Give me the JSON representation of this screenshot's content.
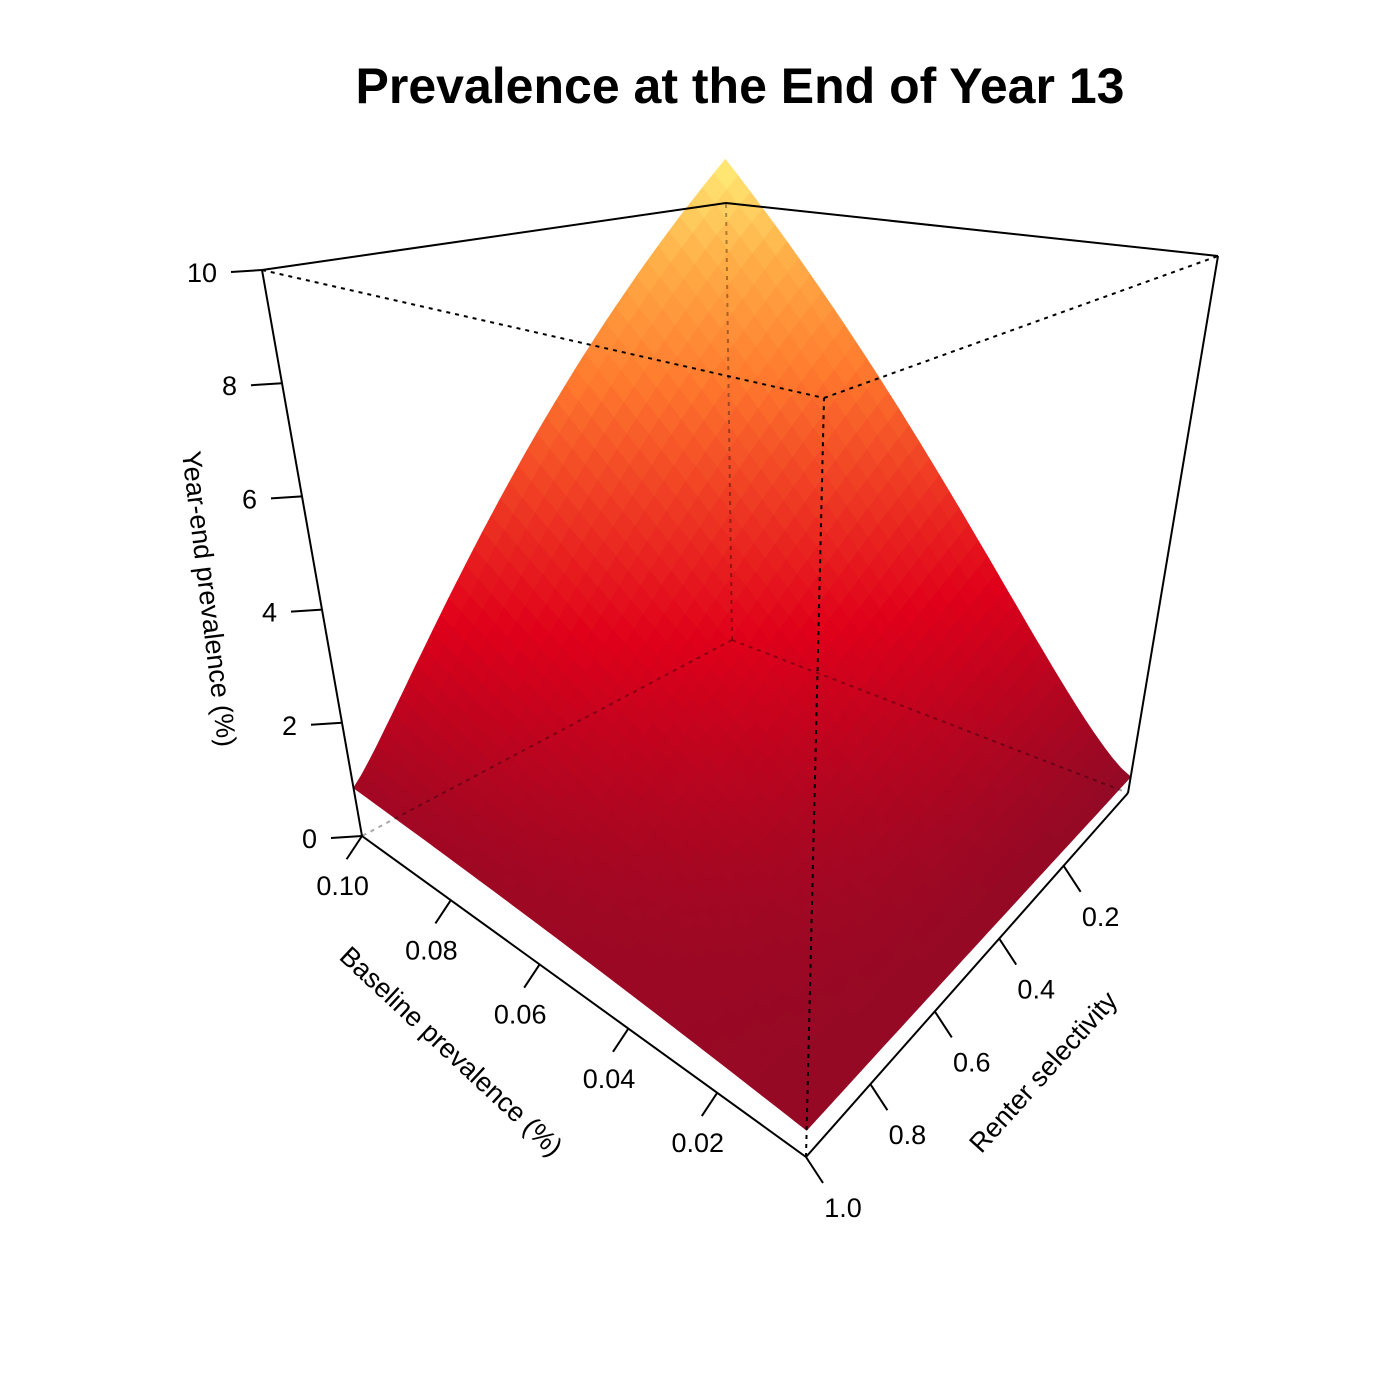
{
  "chart_data": {
    "type": "surface3d",
    "title": "Prevalence at the End of Year 13",
    "xlabel": "Baseline prevalence (%)",
    "ylabel": "Renter selectivity",
    "zlabel": "Year-end prevalence (%)",
    "x_ticks": [
      "0.10",
      "0.08",
      "0.06",
      "0.04",
      "0.02"
    ],
    "y_ticks": [
      "0.2",
      "0.4",
      "0.6",
      "0.8",
      "1.0"
    ],
    "z_ticks": [
      "0",
      "2",
      "4",
      "6",
      "8",
      "10"
    ],
    "x_range": [
      0.0,
      0.1
    ],
    "y_range": [
      0.0,
      1.0
    ],
    "z_range": [
      0,
      10
    ],
    "colormap": [
      "#8b0a26",
      "#e0001a",
      "#ff7a2e",
      "#ffb048",
      "#fff07a"
    ],
    "corner_values": [
      {
        "baseline": 0.0,
        "selectivity": 1.0,
        "prevalence": 0.0
      },
      {
        "baseline": 0.1,
        "selectivity": 1.0,
        "prevalence": 0.3
      },
      {
        "baseline": 0.0,
        "selectivity": 0.0,
        "prevalence": 0.3
      },
      {
        "baseline": 0.1,
        "selectivity": 0.0,
        "prevalence": 11.0
      }
    ]
  }
}
